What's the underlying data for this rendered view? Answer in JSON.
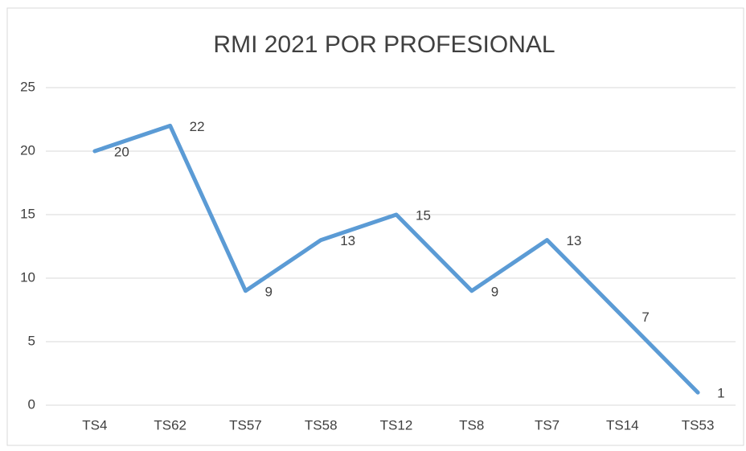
{
  "chart_data": {
    "type": "line",
    "title": "RMI 2021 POR PROFESIONAL",
    "categories": [
      "TS4",
      "TS62",
      "TS57",
      "TS58",
      "TS12",
      "TS8",
      "TS7",
      "TS14",
      "TS53"
    ],
    "values": [
      20,
      22,
      9,
      13,
      15,
      9,
      13,
      7,
      1
    ],
    "color": "#5b9bd5",
    "ylim": [
      0,
      25
    ],
    "yticks": [
      0,
      5,
      10,
      15,
      20,
      25
    ],
    "grid": true
  }
}
